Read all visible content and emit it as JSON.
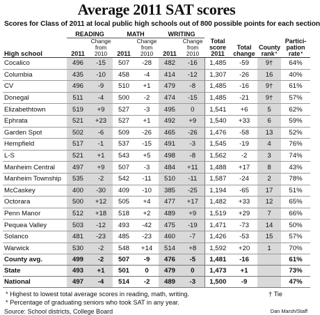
{
  "title": "Average 2011 SAT scores",
  "subtitle": "Scores for Class of 2011 at local public high schools out of 800 possible points for each section",
  "headers": {
    "reading": "READING",
    "math": "MATH",
    "writing": "WRITING",
    "school": "High school",
    "year": "2011",
    "change": "Change from 2010",
    "total_score": "Total score 2011",
    "total_change": "Total change",
    "county_rank": "County rank",
    "county_rank_mark": "*",
    "participation": "Partici-pation rate",
    "participation_mark": "*"
  },
  "rows": [
    {
      "school": "Cocalico",
      "r": "496",
      "rc": "-15",
      "m": "507",
      "mc": "-28",
      "w": "482",
      "wc": "-16",
      "total": "1,485",
      "tc": "-59",
      "rank": "9†",
      "rate": "64%"
    },
    {
      "school": "Columbia",
      "r": "435",
      "rc": "-10",
      "m": "458",
      "mc": "-4",
      "w": "414",
      "wc": "-12",
      "total": "1,307",
      "tc": "-26",
      "rank": "16",
      "rate": "40%"
    },
    {
      "school": "CV",
      "r": "496",
      "rc": "-9",
      "m": "510",
      "mc": "+1",
      "w": "479",
      "wc": "-8",
      "total": "1,485",
      "tc": "-16",
      "rank": "9†",
      "rate": "61%"
    },
    {
      "school": "Donegal",
      "r": "511",
      "rc": "-4",
      "m": "500",
      "mc": "-2",
      "w": "474",
      "wc": "-15",
      "total": "1,485",
      "tc": "-21",
      "rank": "9†",
      "rate": "57%"
    },
    {
      "school": "Elizabethtown",
      "r": "519",
      "rc": "+9",
      "m": "527",
      "mc": "-3",
      "w": "495",
      "wc": "0",
      "total": "1,541",
      "tc": "+6",
      "rank": "5",
      "rate": "62%"
    },
    {
      "school": "Ephrata",
      "r": "521",
      "rc": "+23",
      "m": "527",
      "mc": "+1",
      "w": "492",
      "wc": "+9",
      "total": "1,540",
      "tc": "+33",
      "rank": "6",
      "rate": "59%"
    },
    {
      "school": "Garden Spot",
      "r": "502",
      "rc": "-6",
      "m": "509",
      "mc": "-26",
      "w": "465",
      "wc": "-26",
      "total": "1,476",
      "tc": "-58",
      "rank": "13",
      "rate": "52%"
    },
    {
      "school": "Hempfield",
      "r": "517",
      "rc": "-1",
      "m": "537",
      "mc": "-15",
      "w": "491",
      "wc": "-3",
      "total": "1,545",
      "tc": "-19",
      "rank": "4",
      "rate": "76%"
    },
    {
      "school": "L-S",
      "r": "521",
      "rc": "+1",
      "m": "543",
      "mc": "+5",
      "w": "498",
      "wc": "-8",
      "total": "1,562",
      "tc": "-2",
      "rank": "3",
      "rate": "74%"
    },
    {
      "school": "Manheim Central",
      "r": "497",
      "rc": "+9",
      "m": "507",
      "mc": "-3",
      "w": "484",
      "wc": "+11",
      "total": "1,488",
      "tc": "+17",
      "rank": "8",
      "rate": "43%"
    },
    {
      "school": "Manheim Township",
      "r": "535",
      "rc": "-2",
      "m": "542",
      "mc": "-11",
      "w": "510",
      "wc": "-11",
      "total": "1,587",
      "tc": "-24",
      "rank": "2",
      "rate": "78%"
    },
    {
      "school": "McCaskey",
      "r": "400",
      "rc": "-30",
      "m": "409",
      "mc": "-10",
      "w": "385",
      "wc": "-25",
      "total": "1,194",
      "tc": "-65",
      "rank": "17",
      "rate": "51%"
    },
    {
      "school": "Octorara",
      "r": "500",
      "rc": "+12",
      "m": "505",
      "mc": "+4",
      "w": "477",
      "wc": "+17",
      "total": "1,482",
      "tc": "+33",
      "rank": "12",
      "rate": "65%"
    },
    {
      "school": "Penn Manor",
      "r": "512",
      "rc": "+18",
      "m": "518",
      "mc": "+2",
      "w": "489",
      "wc": "+9",
      "total": "1,519",
      "tc": "+29",
      "rank": "7",
      "rate": "66%"
    },
    {
      "school": "Pequea Valley",
      "r": "503",
      "rc": "-12",
      "m": "493",
      "mc": "-42",
      "w": "475",
      "wc": "-19",
      "total": "1,471",
      "tc": "-73",
      "rank": "14",
      "rate": "50%"
    },
    {
      "school": "Solanco",
      "r": "481",
      "rc": "-23",
      "m": "485",
      "mc": "-23",
      "w": "460",
      "wc": "-7",
      "total": "1,426",
      "tc": "-53",
      "rank": "15",
      "rate": "57%"
    },
    {
      "school": "Warwick",
      "r": "530",
      "rc": "-2",
      "m": "548",
      "mc": "+14",
      "w": "514",
      "wc": "+8",
      "total": "1,592",
      "tc": "+20",
      "rank": "1",
      "rate": "70%"
    }
  ],
  "summary": [
    {
      "school": "County avg.",
      "r": "499",
      "rc": "-2",
      "m": "507",
      "mc": "-9",
      "w": "476",
      "wc": "-5",
      "total": "1,481",
      "tc": "-16",
      "rank": "",
      "rate": "61%"
    },
    {
      "school": "State",
      "r": "493",
      "rc": "+1",
      "m": "501",
      "mc": "0",
      "w": "479",
      "wc": "0",
      "total": "1,473",
      "tc": "+1",
      "rank": "",
      "rate": "73%"
    },
    {
      "school": "National",
      "r": "497",
      "rc": "-4",
      "m": "514",
      "mc": "-2",
      "w": "489",
      "wc": "-3",
      "total": "1,500",
      "tc": "-9",
      "rank": "",
      "rate": "47%"
    }
  ],
  "notes": {
    "note1": "* Highest to lowest total average scores in reading, math, writing.",
    "note2": "* Percentage of graduating seniors who took SAT in any year.",
    "tie": "† Tie",
    "source": "Source: School districts, College Board",
    "credit": "Dan Marsh/Staff"
  },
  "colors": {
    "shade": "#d9d9d9",
    "text": "#111111"
  }
}
